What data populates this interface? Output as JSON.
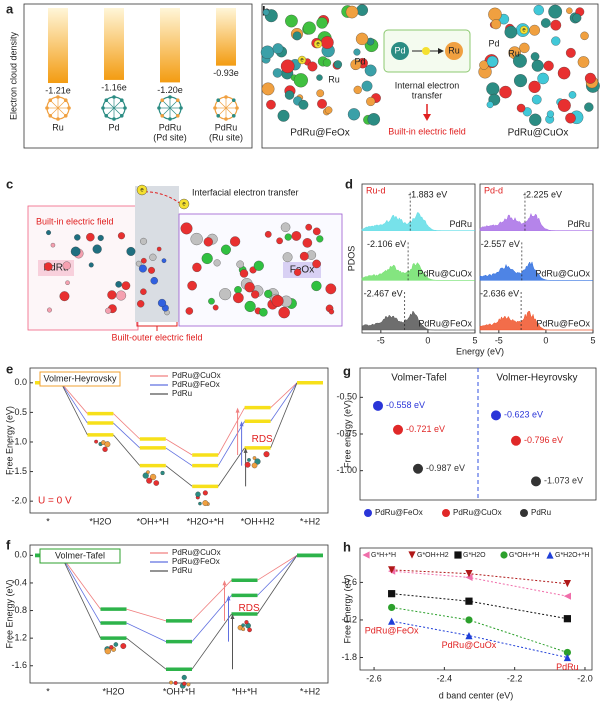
{
  "a": {
    "letter": "a",
    "ylabel": "Electron cloud density",
    "categories": [
      [
        "Ru"
      ],
      [
        "Pd"
      ],
      [
        "PdRu",
        "(Pd site)"
      ],
      [
        "PdRu",
        "(Ru site)"
      ]
    ],
    "values": [
      -1.21,
      -1.16,
      -1.2,
      -0.93
    ],
    "value_labels": [
      "-1.21e",
      "-1.16e",
      "-1.20e",
      "-0.93e"
    ],
    "color": "#f39c12"
  },
  "b": {
    "letter": "b",
    "left_label": "PdRu@FeOx",
    "right_label": "PdRu@CuOx",
    "transfer": [
      "Internal electron",
      "transfer"
    ],
    "field": "Built-in electric field",
    "atoms": {
      "pd": "Pd",
      "ru": "Ru",
      "electron": "e"
    }
  },
  "c": {
    "letter": "c",
    "field_in": "Built-in electric field",
    "transfer": "Interfacial electron transfer",
    "left": "PdRu",
    "right": "FeOx",
    "field_out": "Built-outer electric field",
    "electron": "e"
  },
  "d": {
    "letter": "d",
    "ylabel": "PDOS",
    "xlabel": "Energy (eV)",
    "xlim": [
      -7,
      5
    ],
    "xticks": [
      -5,
      0,
      5
    ],
    "panels": [
      {
        "label": "Ru-d",
        "series": [
          {
            "name": "PdRu",
            "color": "#5fdde6",
            "center": -1.883,
            "center_label": "-1.883 eV"
          },
          {
            "name": "PdRu@CuOx",
            "color": "#6ee06a",
            "center": -2.106,
            "center_label": "-2.106 eV"
          },
          {
            "name": "PdRu@FeOx",
            "color": "#555555",
            "center": -2.467,
            "center_label": "-2.467 eV"
          }
        ]
      },
      {
        "label": "Pd-d",
        "series": [
          {
            "name": "PdRu",
            "color": "#a86ee6",
            "center": -2.225,
            "center_label": "-2.225 eV"
          },
          {
            "name": "PdRu@CuOx",
            "color": "#2f6fe0",
            "center": -2.557,
            "center_label": "-2.557 eV"
          },
          {
            "name": "PdRu@FeOx",
            "color": "#f0542a",
            "center": -2.636,
            "center_label": "-2.636 eV"
          }
        ]
      }
    ]
  },
  "e": {
    "letter": "e",
    "title": "Volmer-Heyrovsky",
    "title_color": "#f0a030",
    "ylabel": "Free Energy (eV)",
    "categories": [
      "*",
      "*H2O",
      "*OH+*H",
      "*H2O+*H",
      "*OH+H2",
      "*+H2"
    ],
    "ylim": [
      -2.2,
      0.25
    ],
    "yticks": [
      {
        "value": 0,
        "label": "0.0"
      },
      -0.5,
      {
        "value": -1,
        "label": "-1.0"
      },
      -1.5,
      {
        "value": -2,
        "label": "-2.0"
      }
    ],
    "level_color": "#f7e01a",
    "rds": "RDS",
    "potential": "U = 0 V",
    "series": [
      {
        "name": "PdRu@CuOx",
        "color": "#f08080",
        "values": [
          0,
          -0.52,
          -0.95,
          -1.22,
          -0.42,
          0
        ]
      },
      {
        "name": "PdRu@FeOx",
        "color": "#6070e0",
        "values": [
          0,
          -0.68,
          -1.1,
          -1.4,
          -0.65,
          0
        ]
      },
      {
        "name": "PdRu",
        "color": "#555555",
        "values": [
          0,
          -0.88,
          -1.4,
          -1.75,
          -1.1,
          0
        ]
      }
    ]
  },
  "f": {
    "letter": "f",
    "title": "Volmer-Tafel",
    "title_color": "#2ca02c",
    "ylabel": "Free Energy (eV)",
    "categories": [
      "*",
      "*H2O",
      "*OH+*H",
      "*H+*H",
      "*+H2"
    ],
    "ylim": [
      -1.85,
      0.15
    ],
    "yticks": [
      {
        "value": 0,
        "label": "0.0"
      },
      -0.4,
      -0.8,
      -1.2,
      -1.6
    ],
    "level_color": "#2db34a",
    "rds": "RDS",
    "series": [
      {
        "name": "PdRu@CuOx",
        "color": "#f08080",
        "values": [
          0,
          -0.78,
          -0.95,
          -0.36,
          0
        ]
      },
      {
        "name": "PdRu@FeOx",
        "color": "#6070e0",
        "values": [
          0,
          -0.98,
          -1.25,
          -0.58,
          0
        ]
      },
      {
        "name": "PdRu",
        "color": "#555555",
        "values": [
          0,
          -1.2,
          -1.65,
          -0.85,
          0
        ]
      }
    ]
  },
  "g": {
    "letter": "g",
    "ylabel": "Free energy (eV)",
    "groups": [
      "Volmer-Tafel",
      "Volmer-Heyrovsky"
    ],
    "ylim": [
      -1.2,
      -0.3
    ],
    "yticks": [
      {
        "value": -0.5,
        "label": "-0.50"
      },
      {
        "value": -0.75,
        "label": "-0.75"
      },
      {
        "value": -1,
        "label": "-1.00"
      }
    ],
    "series": [
      {
        "name": "PdRu@FeOx",
        "color": "#2a35d8",
        "values": [
          -0.558,
          -0.623
        ],
        "value_labels": [
          "-0.558 eV",
          "-0.623 eV"
        ]
      },
      {
        "name": "PdRu@CuOx",
        "color": "#e02828",
        "values": [
          -0.721,
          -0.796
        ],
        "value_labels": [
          "-0.721 eV",
          "-0.796 eV"
        ]
      },
      {
        "name": "PdRu",
        "color": "#333333",
        "values": [
          -0.987,
          -1.073
        ],
        "value_labels": [
          "-0.987 eV",
          "-1.073 eV"
        ]
      }
    ]
  },
  "h": {
    "letter": "h",
    "xlabel": "d band center (eV)",
    "ylabel": "Free Energy (eV)",
    "x": [
      -2.55,
      -2.33,
      -2.05
    ],
    "xlim": [
      -2.64,
      -1.98
    ],
    "xticks": [
      -2.6,
      -2.4,
      -2.2,
      {
        "value": -2,
        "label": "-2.0"
      }
    ],
    "ylim": [
      -2.0,
      -0.05
    ],
    "yticks": [
      -0.6,
      -1.2,
      -1.8
    ],
    "point_labels": [
      "PdRu@FeOx",
      "PdRu@CuOx",
      "PdRu"
    ],
    "point_label_color": "#e02020",
    "series": [
      {
        "name": "G*H+*H",
        "color": "#f06eaa",
        "marker": "triangle-left",
        "values": [
          -0.42,
          -0.52,
          -0.82
        ]
      },
      {
        "name": "G*OH+H2",
        "color": "#b01818",
        "marker": "triangle-down",
        "values": [
          -0.4,
          -0.46,
          -0.62
        ]
      },
      {
        "name": "G*H2O",
        "color": "#111111",
        "marker": "square",
        "values": [
          -0.78,
          -0.9,
          -1.18
        ]
      },
      {
        "name": "G*OH+*H",
        "color": "#2ca02c",
        "marker": "circle",
        "values": [
          -1.0,
          -1.2,
          -1.72
        ]
      },
      {
        "name": "G*H2O+*H",
        "color": "#1f3fd8",
        "marker": "triangle-up",
        "values": [
          -1.22,
          -1.45,
          -1.8
        ]
      }
    ]
  }
}
